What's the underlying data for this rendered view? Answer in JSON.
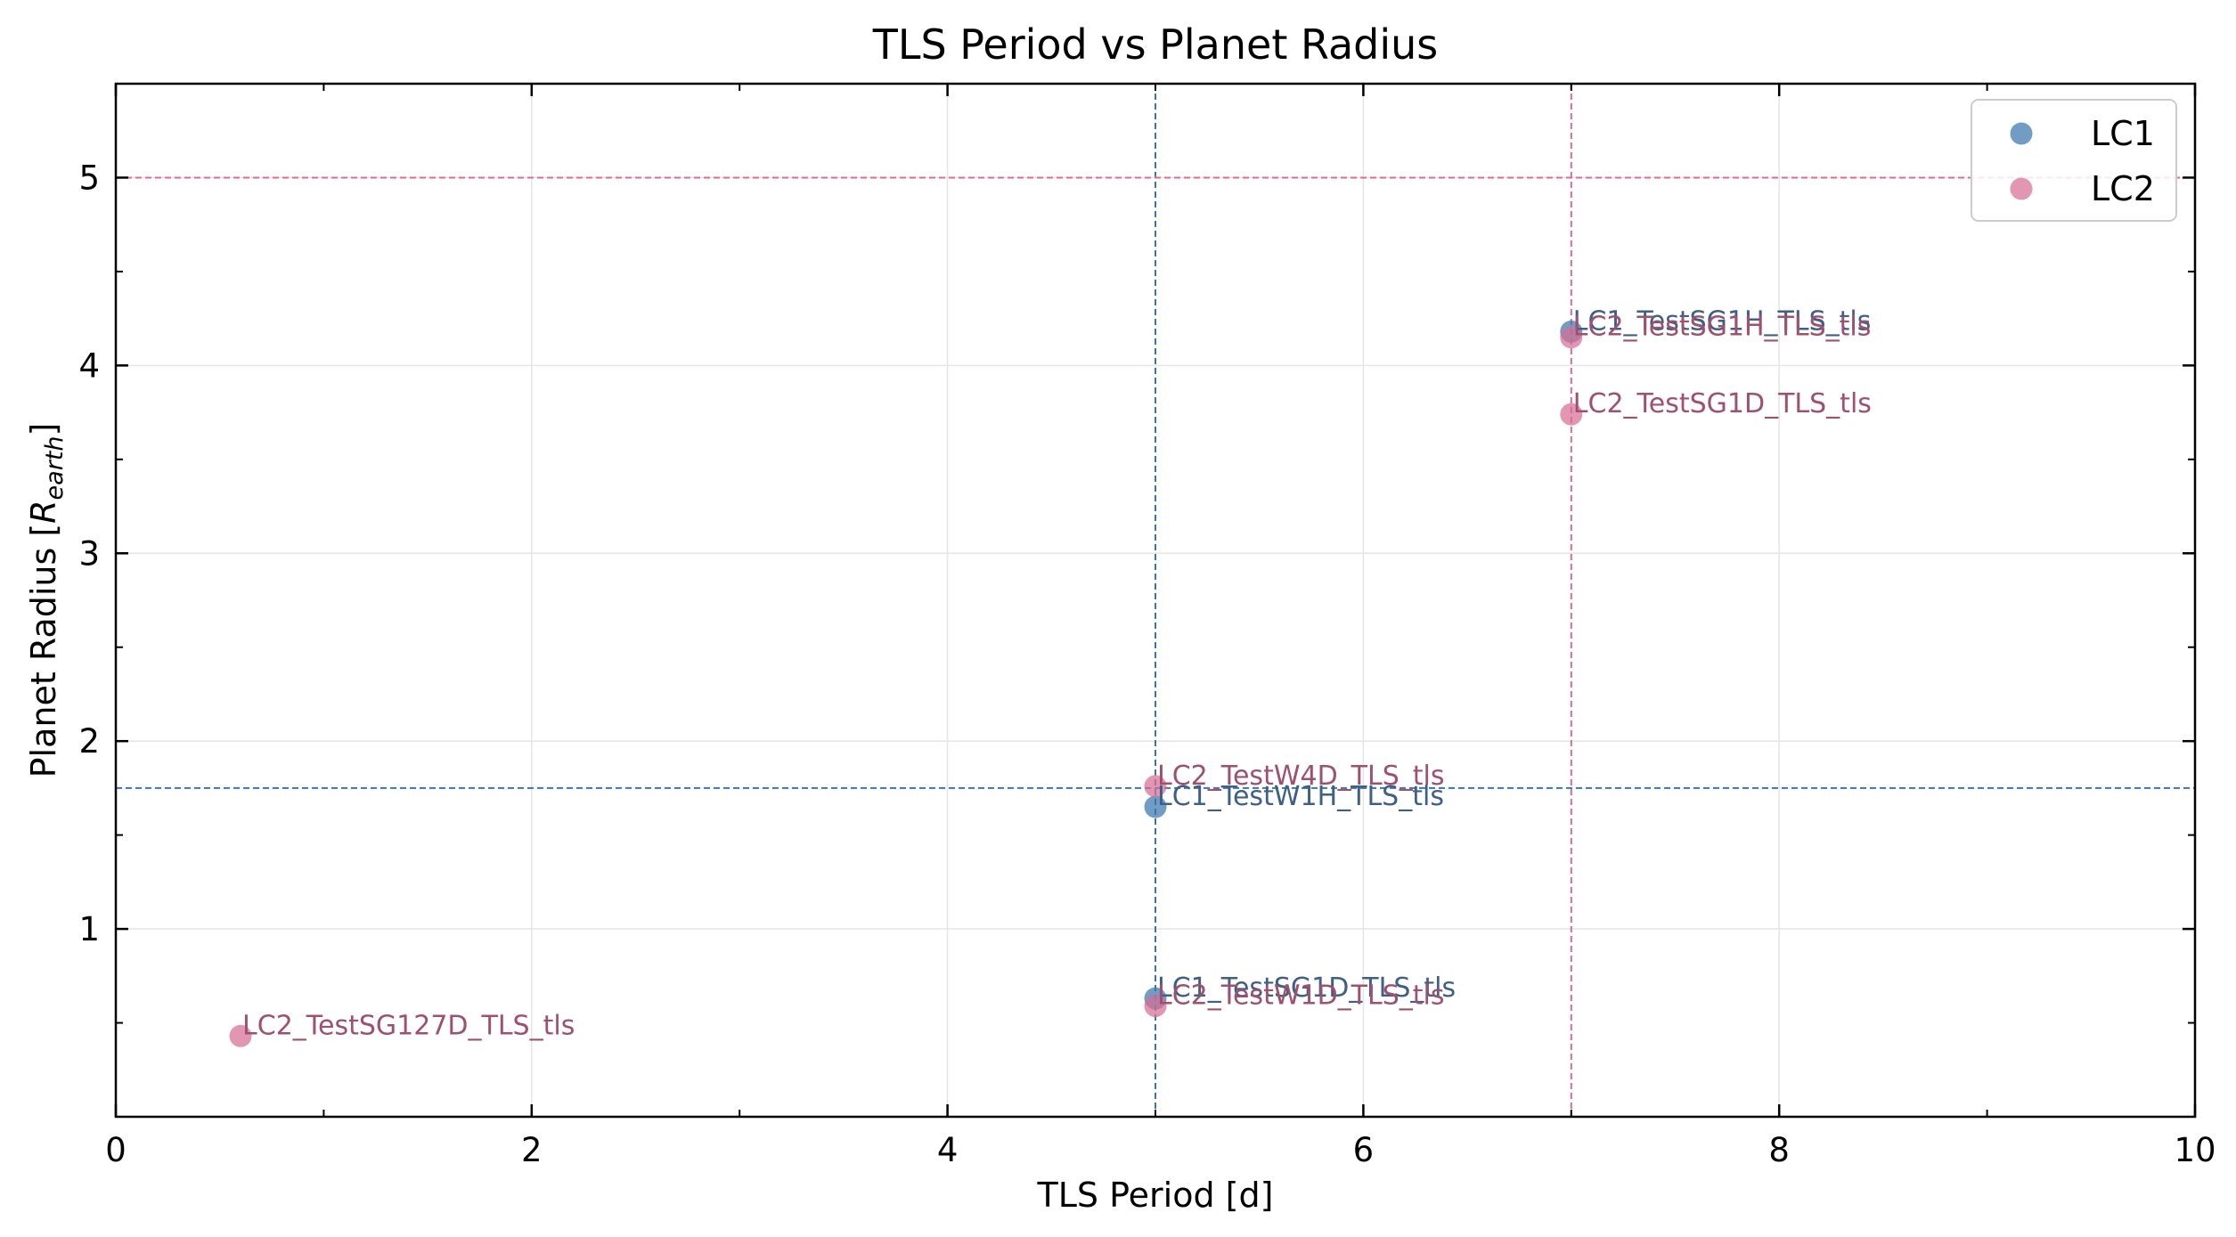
{
  "chart_data": {
    "type": "scatter",
    "title": "TLS Period vs Planet Radius",
    "xlabel": "TLS Period [d]",
    "ylabel_parts": {
      "main": "Planet Radius [",
      "symbol": "R",
      "subscript": "earth",
      "close": "]"
    },
    "xlim": [
      0,
      10
    ],
    "ylim": [
      0,
      5.5
    ],
    "xticks": [
      0,
      2,
      4,
      6,
      8,
      10
    ],
    "yticks": [
      1,
      2,
      3,
      4,
      5
    ],
    "grid": true,
    "legend_position": "top-right",
    "series": [
      {
        "name": "LC1",
        "color": "#3a76ac",
        "label_color": "#3d5f88",
        "points": [
          {
            "x": 5.0,
            "y": 1.65,
            "label": "LC1_TestW1H_TLS_tls"
          },
          {
            "x": 5.0,
            "y": 0.63,
            "label": "LC1_TestSG1D_TLS_tls"
          },
          {
            "x": 7.0,
            "y": 4.18,
            "label": "LC1_TestSG1H_TLS_tls"
          }
        ]
      },
      {
        "name": "LC2",
        "color": "#d86d93",
        "label_color": "#a0506f",
        "points": [
          {
            "x": 5.0,
            "y": 1.76,
            "label": "LC2_TestW4D_TLS_tls"
          },
          {
            "x": 5.0,
            "y": 0.59,
            "label": "LC2_TestW1D_TLS_tls"
          },
          {
            "x": 7.0,
            "y": 4.15,
            "label": "LC2_TestSG1H_TLS_tls"
          },
          {
            "x": 7.0,
            "y": 3.74,
            "label": "LC2_TestSG1D_TLS_tls"
          },
          {
            "x": 0.6,
            "y": 0.43,
            "label": "LC2_TestSG127D_TLS_tls"
          }
        ]
      }
    ],
    "reference_lines": [
      {
        "orientation": "vertical",
        "value": 5.0,
        "color": "#3a76ac"
      },
      {
        "orientation": "horizontal",
        "value": 1.75,
        "color": "#3a76ac"
      },
      {
        "orientation": "vertical",
        "value": 7.0,
        "color": "#d86d93"
      },
      {
        "orientation": "horizontal",
        "value": 5.0,
        "color": "#d86d93"
      }
    ]
  }
}
